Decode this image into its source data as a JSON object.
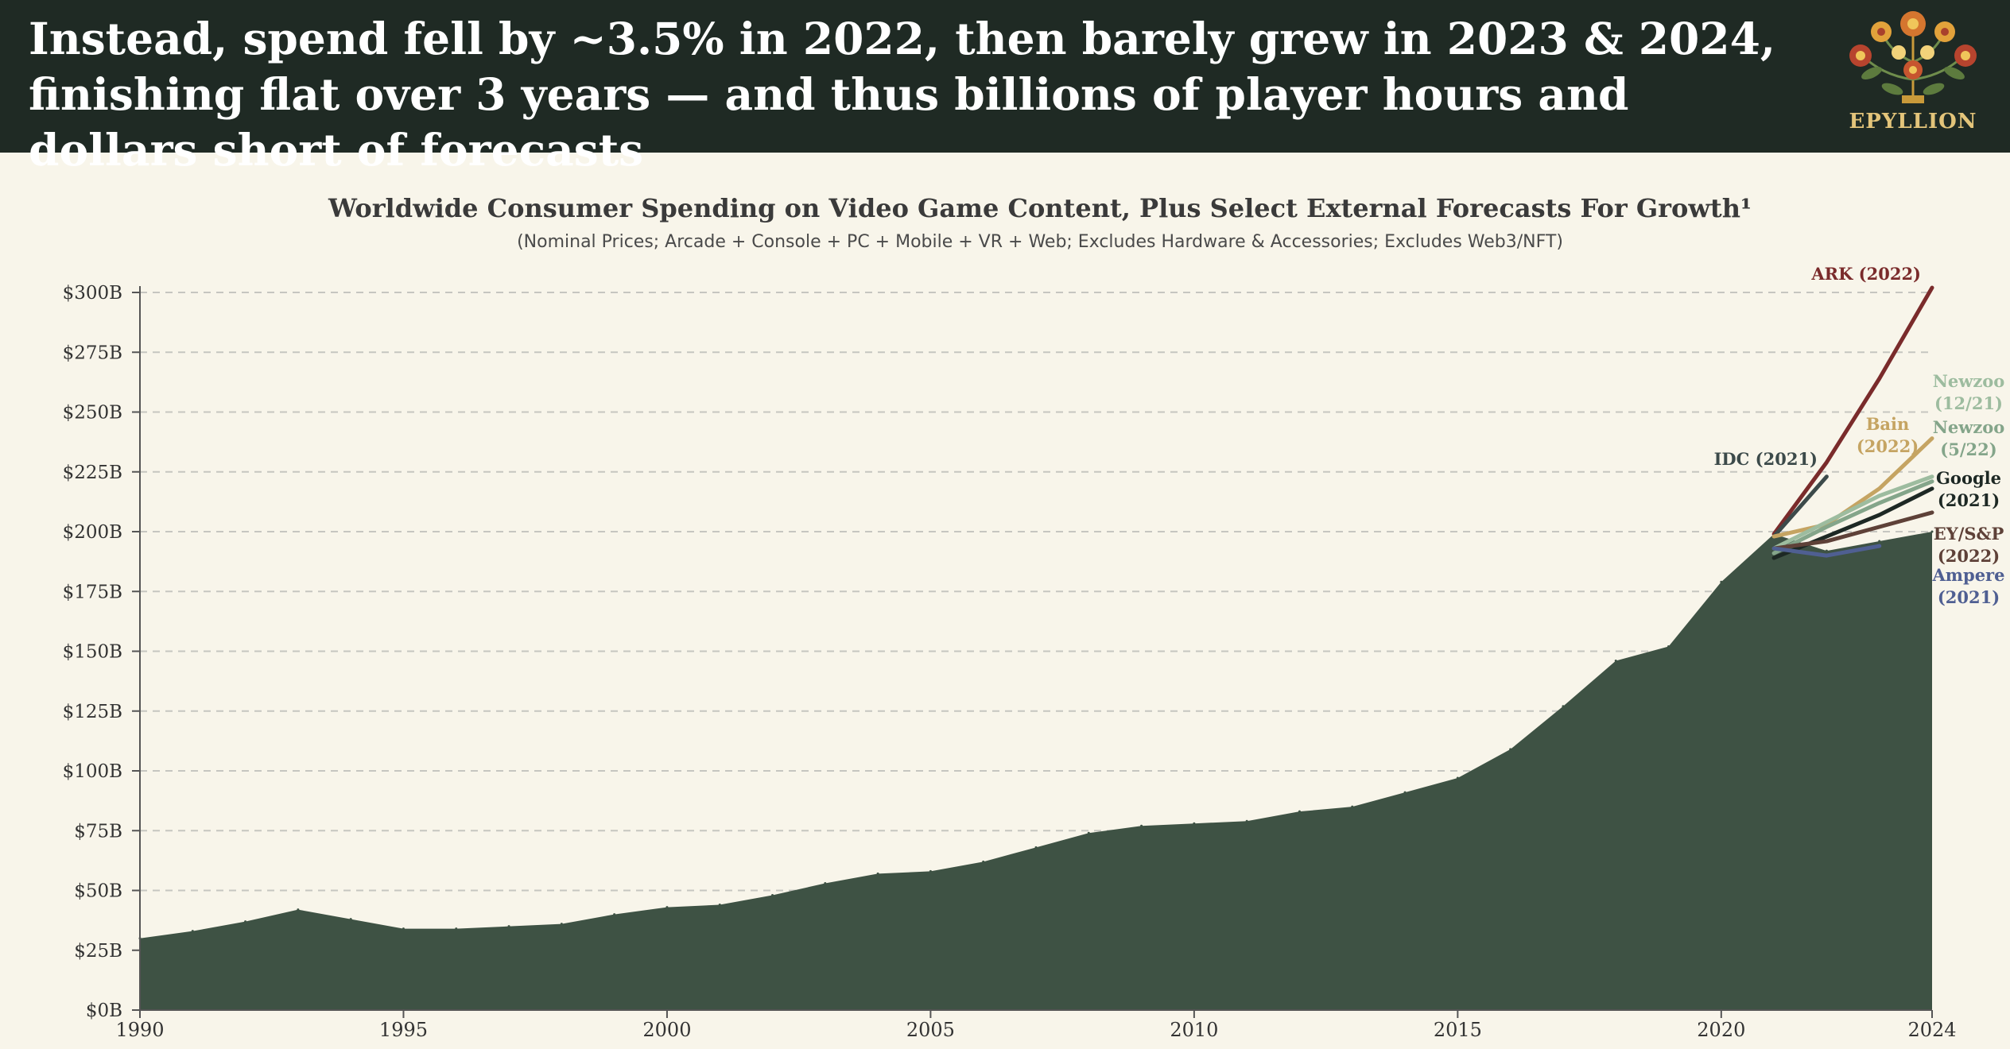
{
  "header": {
    "headline": "Instead, spend fell by ~3.5% in 2022, then barely grew in 2023 & 2024, finishing flat over 3 years — and thus billions of player hours and dollars short of forecasts",
    "brand": "EPYLLION"
  },
  "colors": {
    "header_bg": "#1f2a24",
    "background": "#f8f5ea",
    "area_fill": "#3e5244",
    "grid": "#c6c6c0",
    "text": "#333333"
  },
  "chart_data": {
    "type": "area",
    "title": "Worldwide Consumer Spending on Video Game Content, Plus Select External Forecasts For Growth¹",
    "subtitle": "(Nominal Prices; Arcade + Console + PC + Mobile + VR + Web; Excludes Hardware & Accessories; Excludes Web3/NFT)",
    "xlabel": "",
    "ylabel": "",
    "xlim": [
      1990,
      2024
    ],
    "ylim": [
      0,
      300
    ],
    "x_ticks": [
      1990,
      1995,
      2000,
      2005,
      2010,
      2015,
      2020,
      2024
    ],
    "y_ticks": [
      {
        "value": 0,
        "label": "$0B"
      },
      {
        "value": 25,
        "label": "$25B"
      },
      {
        "value": 50,
        "label": "$50B"
      },
      {
        "value": 75,
        "label": "$75B"
      },
      {
        "value": 100,
        "label": "$100B"
      },
      {
        "value": 125,
        "label": "$125B"
      },
      {
        "value": 150,
        "label": "$150B"
      },
      {
        "value": 175,
        "label": "$175B"
      },
      {
        "value": 200,
        "label": "$200B"
      },
      {
        "value": 225,
        "label": "$225B"
      },
      {
        "value": 250,
        "label": "$250B"
      },
      {
        "value": 275,
        "label": "$275B"
      },
      {
        "value": 300,
        "label": "$300B"
      }
    ],
    "grid": "horizontal dashed",
    "actual": {
      "name": "Worldwide consumer spending",
      "x": [
        1990,
        1991,
        1992,
        1993,
        1994,
        1995,
        1996,
        1997,
        1998,
        1999,
        2000,
        2001,
        2002,
        2003,
        2004,
        2005,
        2006,
        2007,
        2008,
        2009,
        2010,
        2011,
        2012,
        2013,
        2014,
        2015,
        2016,
        2017,
        2018,
        2019,
        2020,
        2021,
        2022,
        2023,
        2024
      ],
      "values": [
        30,
        33,
        37,
        42,
        38,
        34,
        34,
        35,
        36,
        40,
        43,
        44,
        48,
        53,
        57,
        58,
        62,
        68,
        74,
        77,
        78,
        79,
        83,
        85,
        91,
        97,
        109,
        127,
        146,
        152,
        179,
        199,
        192,
        196,
        200
      ]
    },
    "forecasts": [
      {
        "name": "ARK (2022)",
        "label_lines": [
          "ARK (2022)"
        ],
        "color": "#7a2b2b",
        "x": [
          2021,
          2022,
          2023,
          2024
        ],
        "values": [
          199,
          229,
          264,
          302
        ]
      },
      {
        "name": "IDC (2021)",
        "label_lines": [
          "IDC (2021)"
        ],
        "color": "#3c4a4a",
        "x": [
          2021,
          2022
        ],
        "values": [
          198,
          223
        ]
      },
      {
        "name": "Bain (2022)",
        "label_lines": [
          "Bain",
          "(2022)"
        ],
        "color": "#c5a462",
        "x": [
          2021,
          2022,
          2023,
          2024
        ],
        "values": [
          198,
          203,
          218,
          239
        ]
      },
      {
        "name": "Newzoo (12/21)",
        "label_lines": [
          "Newzoo",
          "(12/21)"
        ],
        "color": "#9dbc9f",
        "x": [
          2021,
          2022,
          2023,
          2024
        ],
        "values": [
          193,
          204,
          215,
          223
        ]
      },
      {
        "name": "Newzoo (5/22)",
        "label_lines": [
          "Newzoo",
          "(5/22)"
        ],
        "color": "#84a58a",
        "x": [
          2021,
          2022,
          2023,
          2024
        ],
        "values": [
          191,
          202,
          212,
          221
        ]
      },
      {
        "name": "Google (2021)",
        "label_lines": [
          "Google",
          "(2021)"
        ],
        "color": "#1d2824",
        "x": [
          2021,
          2022,
          2023,
          2024
        ],
        "values": [
          189,
          198,
          207,
          218
        ]
      },
      {
        "name": "EY/S&P (2022)",
        "label_lines": [
          "EY/S&P",
          "(2022)"
        ],
        "color": "#5e4138",
        "x": [
          2021,
          2022,
          2023,
          2024
        ],
        "values": [
          193,
          196,
          202,
          208
        ]
      },
      {
        "name": "Ampere (2021)",
        "label_lines": [
          "Ampere",
          "(2021)"
        ],
        "color": "#4f5f92",
        "x": [
          2021,
          2022,
          2023
        ],
        "values": [
          193,
          190,
          194
        ]
      }
    ]
  }
}
